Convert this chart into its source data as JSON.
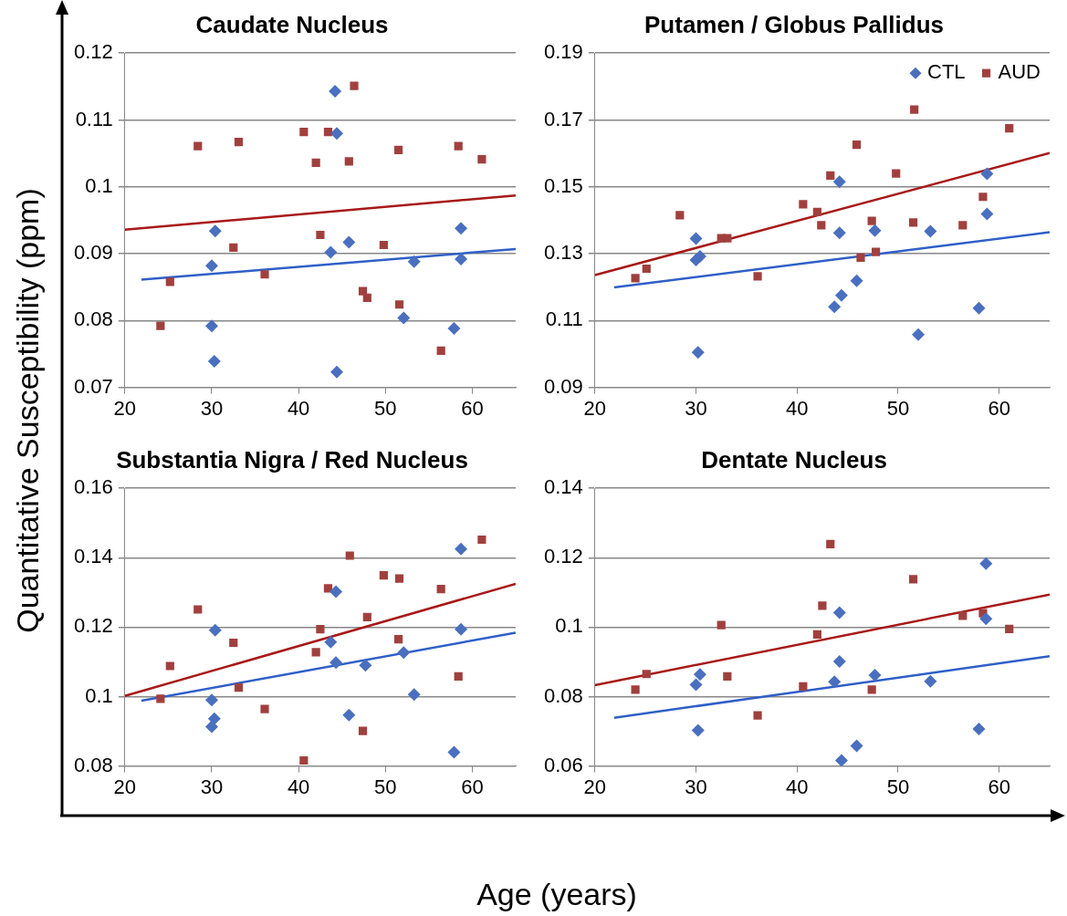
{
  "chart_data": [
    {
      "type": "scatter",
      "title": "Caudate Nucleus",
      "xlabel": "Age (years)",
      "ylabel": "Quantitative Susceptibility (ppm)",
      "xlim": [
        20,
        65
      ],
      "xticks": [
        20,
        30,
        40,
        50,
        60
      ],
      "ylim": [
        0.07,
        0.12
      ],
      "yticks": [
        0.07,
        0.08,
        0.09,
        0.1,
        0.11,
        0.12
      ],
      "grid": "y",
      "legend": false,
      "series": [
        {
          "color": "#4a6fbf",
          "marker": "diamond",
          "x": [
            30.4,
            30,
            30,
            30.3,
            44.2,
            44.4,
            43.7,
            45.8,
            44.4,
            53.3,
            52.1,
            58.7,
            58.7,
            57.9
          ],
          "values": [
            0.0934,
            0.0882,
            0.0792,
            0.0739,
            0.1143,
            0.108,
            0.0902,
            0.0917,
            0.0723,
            0.0888,
            0.0804,
            0.0938,
            0.0892,
            0.0788
          ]
        },
        {
          "color": "#a0403e",
          "marker": "square",
          "x": [
            24.1,
            25.2,
            28.4,
            33.1,
            32.5,
            36.1,
            40.6,
            42,
            43.4,
            42.5,
            46.4,
            45.8,
            49.8,
            47.4,
            47.9,
            51.5,
            51.6,
            56.4,
            58.4,
            61.1
          ],
          "values": [
            0.0792,
            0.0858,
            0.1061,
            0.1067,
            0.0909,
            0.0869,
            0.1082,
            0.1036,
            0.1082,
            0.0928,
            0.1151,
            0.1038,
            0.0913,
            0.0844,
            0.0834,
            0.1055,
            0.0824,
            0.0755,
            0.1061,
            0.1041
          ]
        },
        {
          "type": "line",
          "color": "#2f5fc8",
          "marker": "none",
          "x": [
            21.9,
            65
          ],
          "values": [
            0.0861,
            0.0907
          ]
        },
        {
          "type": "line",
          "color": "#a81818",
          "marker": "none",
          "x": [
            20,
            65
          ],
          "values": [
            0.0936,
            0.0987
          ]
        }
      ]
    },
    {
      "type": "scatter",
      "title": "Putamen / Globus Pallidus",
      "xlim": [
        20,
        65
      ],
      "xticks": [
        20,
        30,
        40,
        50,
        60
      ],
      "ylim": [
        0.09,
        0.19
      ],
      "yticks": [
        0.09,
        0.11,
        0.13,
        0.15,
        0.17,
        0.19
      ],
      "grid": "y",
      "legend": "top right",
      "series": [
        {
          "name": "CTL",
          "color": "#4a6fbf",
          "marker": "diamond",
          "x": [
            30,
            30,
            30.4,
            30.2,
            44.2,
            44.2,
            43.7,
            44.4,
            45.9,
            47.7,
            53.2,
            52,
            58.8,
            58.8,
            58
          ],
          "values": [
            0.1345,
            0.1281,
            0.1292,
            0.1005,
            0.1515,
            0.1362,
            0.1141,
            0.1175,
            0.1219,
            0.1369,
            0.1367,
            0.1058,
            0.1539,
            0.1419,
            0.1137
          ]
        },
        {
          "name": "AUD",
          "color": "#a0403e",
          "marker": "square",
          "x": [
            24,
            25.1,
            28.4,
            32.5,
            33.1,
            36.1,
            40.6,
            42,
            42.4,
            43.3,
            45.9,
            46.3,
            47.4,
            47.8,
            49.8,
            51.6,
            51.5,
            56.4,
            58.4,
            61
          ],
          "values": [
            0.1227,
            0.1255,
            0.1415,
            0.1346,
            0.1346,
            0.1232,
            0.1448,
            0.1425,
            0.1385,
            0.1534,
            0.1626,
            0.1288,
            0.1398,
            0.1305,
            0.154,
            0.1731,
            0.1393,
            0.1385,
            0.147,
            0.1675
          ]
        },
        {
          "type": "line",
          "color": "#2f5fc8",
          "marker": "none",
          "x": [
            21.9,
            65
          ],
          "values": [
            0.1199,
            0.1364
          ]
        },
        {
          "type": "line",
          "color": "#a81818",
          "marker": "none",
          "x": [
            20,
            65
          ],
          "values": [
            0.1236,
            0.1601
          ]
        }
      ]
    },
    {
      "type": "scatter",
      "title": "Substantia Nigra / Red Nucleus",
      "xlim": [
        20,
        65
      ],
      "xticks": [
        20,
        30,
        40,
        50,
        60
      ],
      "ylim": [
        0.08,
        0.16
      ],
      "yticks": [
        0.08,
        0.1,
        0.12,
        0.14,
        0.16
      ],
      "grid": "y",
      "legend": false,
      "series": [
        {
          "color": "#4a6fbf",
          "marker": "diamond",
          "x": [
            30.4,
            30,
            30.3,
            30,
            43.7,
            44.3,
            44.3,
            45.8,
            47.7,
            52.1,
            53.3,
            58.7,
            58.7,
            57.9
          ],
          "values": [
            0.1191,
            0.099,
            0.0936,
            0.0913,
            0.1157,
            0.1302,
            0.1098,
            0.0947,
            0.109,
            0.1127,
            0.1006,
            0.1425,
            0.1194,
            0.084
          ]
        },
        {
          "color": "#a0403e",
          "marker": "square",
          "x": [
            24.1,
            25.2,
            28.4,
            32.5,
            33.1,
            36.1,
            40.6,
            42,
            42.5,
            43.4,
            45.9,
            47.9,
            47.4,
            49.8,
            51.6,
            51.5,
            56.4,
            58.4,
            61.1
          ],
          "values": [
            0.0994,
            0.1088,
            0.1251,
            0.1155,
            0.1026,
            0.0964,
            0.0816,
            0.1128,
            0.1194,
            0.1312,
            0.1406,
            0.1229,
            0.0901,
            0.1349,
            0.134,
            0.1165,
            0.131,
            0.1058,
            0.1452
          ]
        },
        {
          "type": "line",
          "color": "#2f5fc8",
          "marker": "none",
          "x": [
            21.9,
            65
          ],
          "values": [
            0.0988,
            0.1184
          ]
        },
        {
          "type": "line",
          "color": "#a81818",
          "marker": "none",
          "x": [
            20,
            65
          ],
          "values": [
            0.1002,
            0.1325
          ]
        }
      ]
    },
    {
      "type": "scatter",
      "title": "Dentate Nucleus",
      "xlim": [
        20,
        65
      ],
      "xticks": [
        20,
        30,
        40,
        50,
        60
      ],
      "ylim": [
        0.06,
        0.14
      ],
      "yticks": [
        0.06,
        0.08,
        0.1,
        0.12,
        0.14
      ],
      "grid": "y",
      "legend": false,
      "series": [
        {
          "color": "#4a6fbf",
          "marker": "diamond",
          "x": [
            30,
            30.4,
            30.2,
            43.7,
            44.2,
            44.2,
            44.4,
            45.9,
            47.7,
            53.2,
            58,
            58.7,
            58.7
          ],
          "values": [
            0.0834,
            0.0864,
            0.0703,
            0.0843,
            0.1042,
            0.0901,
            0.0616,
            0.0658,
            0.0862,
            0.0844,
            0.0707,
            0.1183,
            0.1024
          ]
        },
        {
          "color": "#a0403e",
          "marker": "square",
          "x": [
            24,
            25.1,
            32.5,
            33.1,
            36.1,
            40.6,
            42,
            42.5,
            43.3,
            47.4,
            51.5,
            56.4,
            58.4,
            61
          ],
          "values": [
            0.082,
            0.0865,
            0.1006,
            0.0858,
            0.0746,
            0.0829,
            0.0979,
            0.1062,
            0.1239,
            0.082,
            0.1138,
            0.1033,
            0.104,
            0.0995
          ]
        },
        {
          "type": "line",
          "color": "#2f5fc8",
          "marker": "none",
          "x": [
            21.9,
            65
          ],
          "values": [
            0.0739,
            0.0916
          ]
        },
        {
          "type": "line",
          "color": "#a81818",
          "marker": "none",
          "x": [
            20,
            65
          ],
          "values": [
            0.0833,
            0.1094
          ]
        }
      ]
    }
  ]
}
